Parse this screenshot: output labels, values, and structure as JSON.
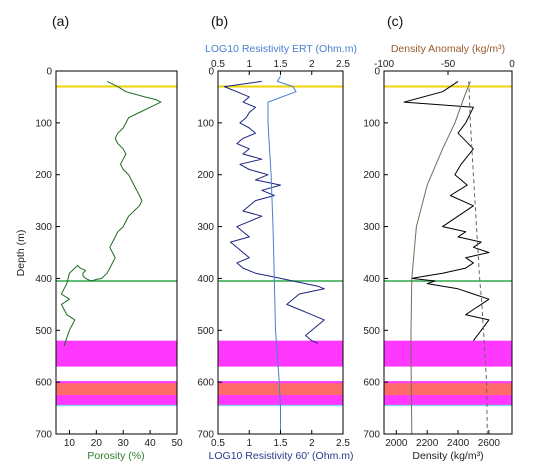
{
  "chart_data": [
    {
      "panel": "(a)",
      "type": "line",
      "xlabel": "Porosity (%)",
      "ylabel": "Depth (m)",
      "xlim": [
        5,
        50
      ],
      "ylim": [
        700,
        0
      ],
      "xticks": [
        10,
        20,
        30,
        40,
        50
      ],
      "yticks": [
        0,
        100,
        200,
        300,
        400,
        500,
        600,
        700
      ],
      "xlabel_color": "#2e7d2e",
      "series": [
        {
          "color": "#1f6b1f",
          "x": [
            24,
            28,
            31,
            38,
            42,
            44,
            40,
            36,
            32,
            31,
            30,
            28,
            27,
            28,
            30,
            31,
            30,
            29,
            30,
            32,
            33,
            34,
            35,
            36,
            37,
            36,
            34,
            32,
            31,
            30,
            28,
            27,
            26,
            25,
            26,
            27,
            26,
            25,
            24,
            22,
            20,
            18,
            16,
            15,
            15,
            16,
            14,
            13,
            12,
            10,
            9,
            8,
            7,
            10,
            7,
            8,
            9,
            12,
            10,
            8
          ],
          "y": [
            20,
            30,
            40,
            50,
            55,
            60,
            70,
            80,
            90,
            100,
            110,
            120,
            130,
            140,
            150,
            160,
            170,
            180,
            190,
            200,
            210,
            220,
            230,
            240,
            250,
            260,
            270,
            280,
            290,
            300,
            310,
            320,
            330,
            340,
            350,
            360,
            370,
            380,
            390,
            400,
            402,
            405,
            400,
            395,
            390,
            385,
            380,
            375,
            380,
            390,
            410,
            420,
            430,
            440,
            450,
            460,
            470,
            480,
            500,
            530
          ]
        }
      ]
    },
    {
      "panel": "(b)",
      "type": "line",
      "xlabel": "LOG10 Resistivity 60' (Ohm.m)",
      "top_xlabel": "LOG10 Resistivity ERT (Ohm.m)",
      "xlim": [
        0.5,
        2.5
      ],
      "ylim": [
        700,
        0
      ],
      "xticks": [
        0.5,
        1,
        1.5,
        2,
        2.5
      ],
      "yticks": [
        0,
        100,
        200,
        300,
        400,
        500,
        600,
        700
      ],
      "xlabel_color": "#2b3a8c",
      "top_xlabel_color": "#4a7fd0",
      "series": [
        {
          "color": "#1c2580",
          "x": [
            1.2,
            0.6,
            0.8,
            1.0,
            0.9,
            1.1,
            1.0,
            0.95,
            0.85,
            1.0,
            1.1,
            0.9,
            0.8,
            1.0,
            0.9,
            1.2,
            0.85,
            1.0,
            1.3,
            1.1,
            1.5,
            1.2,
            1.4,
            1.1,
            1.0,
            0.9,
            1.2,
            1.0,
            0.8,
            0.9,
            1.0,
            0.7,
            0.8,
            0.9,
            1.0,
            0.8,
            0.9,
            1.1,
            1.3,
            1.5,
            1.7,
            1.9,
            2.1,
            2.2,
            2.0,
            1.8,
            1.7,
            1.6,
            1.8,
            2.0,
            2.2,
            2.1,
            2.0,
            1.9,
            2.0,
            2.1
          ],
          "y": [
            20,
            30,
            40,
            50,
            60,
            70,
            80,
            90,
            100,
            110,
            120,
            130,
            140,
            150,
            160,
            170,
            180,
            190,
            200,
            210,
            220,
            230,
            240,
            250,
            260,
            270,
            280,
            290,
            300,
            310,
            320,
            330,
            340,
            350,
            360,
            370,
            380,
            390,
            395,
            400,
            405,
            410,
            415,
            420,
            425,
            430,
            440,
            450,
            460,
            470,
            480,
            490,
            500,
            510,
            520,
            525
          ]
        },
        {
          "color": "#4a7fd0",
          "axis": "top",
          "x": [
            1.5,
            1.45,
            1.7,
            1.75,
            1.3,
            1.3,
            1.35,
            1.38,
            1.4,
            1.42,
            1.45,
            1.48,
            1.5,
            1.5
          ],
          "y": [
            10,
            20,
            30,
            40,
            60,
            100,
            200,
            300,
            400,
            500,
            550,
            600,
            650,
            700
          ]
        }
      ]
    },
    {
      "panel": "(c)",
      "type": "line",
      "xlabel": "Density (kg/m³)",
      "top_xlabel": "Density Anomaly (kg/m³)",
      "xlim": [
        1920,
        2750
      ],
      "ylim": [
        700,
        0
      ],
      "xticks": [
        2000,
        2200,
        2400,
        2600
      ],
      "top_xlim": [
        -100,
        0
      ],
      "top_xticks": [
        -100,
        -50,
        0
      ],
      "yticks": [
        0,
        100,
        200,
        300,
        400,
        500,
        600,
        700
      ],
      "top_xlabel_color": "#9b5a2e",
      "series": [
        {
          "color": "#000000",
          "x": [
            2400,
            2300,
            2050,
            2500,
            2450,
            2400,
            2500,
            2420,
            2380,
            2460,
            2350,
            2500,
            2400,
            2300,
            2450,
            2400,
            2550,
            2500,
            2600,
            2450,
            2500,
            2450,
            2300,
            2200,
            2100,
            2250,
            2200,
            2400,
            2500,
            2600,
            2550,
            2500,
            2450,
            2600,
            2550,
            2500
          ],
          "y": [
            20,
            40,
            60,
            70,
            100,
            120,
            150,
            180,
            200,
            220,
            240,
            260,
            280,
            300,
            310,
            320,
            330,
            340,
            350,
            360,
            370,
            380,
            390,
            395,
            400,
            405,
            410,
            420,
            430,
            440,
            450,
            460,
            470,
            480,
            500,
            520
          ]
        },
        {
          "color": "#7a6a56",
          "x": [
            2480,
            2440,
            2380,
            2300,
            2200,
            2130,
            2100,
            2095,
            2095,
            2097,
            2100
          ],
          "y": [
            20,
            50,
            100,
            150,
            220,
            300,
            400,
            500,
            550,
            600,
            700
          ]
        },
        {
          "color": "#666666",
          "dashed": true,
          "x": [
            2470,
            2480,
            2500,
            2520,
            2540,
            2555,
            2565,
            2575,
            2585,
            2590
          ],
          "y": [
            20,
            100,
            200,
            300,
            400,
            450,
            500,
            550,
            600,
            700
          ]
        }
      ]
    }
  ],
  "markers": {
    "yellow_line_depth": 30,
    "green_line_depth": 405,
    "cyan_line_depth": 645,
    "magenta_bands": [
      [
        520,
        570
      ],
      [
        598,
        645
      ]
    ],
    "red_band": [
      602,
      625
    ],
    "yellow_color": "#f2d200",
    "green_color": "#2ea84a",
    "cyan_color": "#7fd8e0",
    "magenta_color": "#ff38ff",
    "red_color": "#ff6a6a"
  }
}
